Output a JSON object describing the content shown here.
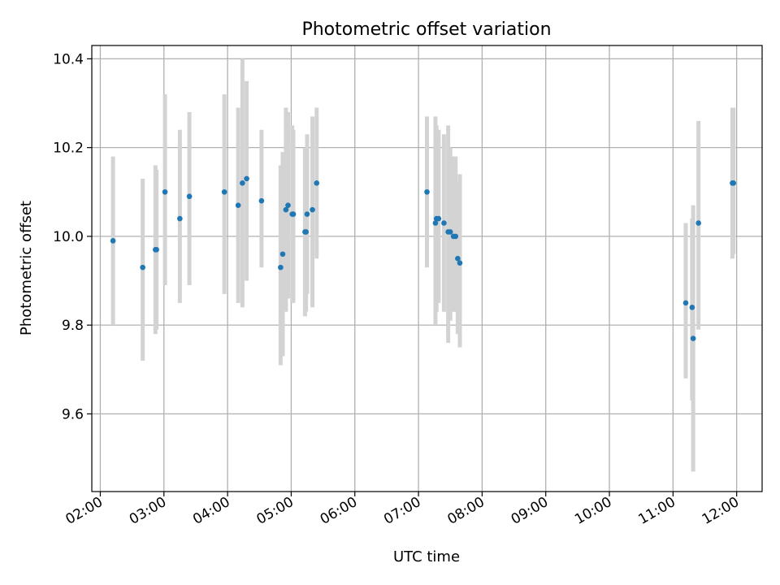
{
  "chart_data": {
    "type": "scatter",
    "title": "Photometric offset variation",
    "xlabel": "UTC time",
    "ylabel": "Photometric offset",
    "x_axis_kind": "time",
    "xlim": [
      "01:52",
      "12:24"
    ],
    "ylim": [
      9.425,
      10.43
    ],
    "x_ticks": [
      "02:00",
      "03:00",
      "04:00",
      "05:00",
      "06:00",
      "07:00",
      "08:00",
      "09:00",
      "10:00",
      "11:00",
      "12:00"
    ],
    "y_ticks": [
      "9.6",
      "9.8",
      "10.0",
      "10.2",
      "10.4"
    ],
    "grid": true,
    "marker_color": "#1f77b4",
    "errorbar_color": "#d3d3d3",
    "series": [
      {
        "points": [
          {
            "x": "02:12",
            "y": 9.99,
            "ylo": 9.8,
            "yhi": 10.18
          },
          {
            "x": "02:40",
            "y": 9.93,
            "ylo": 9.72,
            "yhi": 10.13
          },
          {
            "x": "02:52",
            "y": 9.97,
            "ylo": 9.78,
            "yhi": 10.16
          },
          {
            "x": "02:53",
            "y": 9.97,
            "ylo": 9.79,
            "yhi": 10.15
          },
          {
            "x": "03:01",
            "y": 10.1,
            "ylo": 9.89,
            "yhi": 10.32
          },
          {
            "x": "03:15",
            "y": 10.04,
            "ylo": 9.85,
            "yhi": 10.24
          },
          {
            "x": "03:24",
            "y": 10.09,
            "ylo": 9.89,
            "yhi": 10.28
          },
          {
            "x": "03:57",
            "y": 10.1,
            "ylo": 9.87,
            "yhi": 10.32
          },
          {
            "x": "04:10",
            "y": 10.07,
            "ylo": 9.85,
            "yhi": 10.29
          },
          {
            "x": "04:14",
            "y": 10.12,
            "ylo": 9.84,
            "yhi": 10.4
          },
          {
            "x": "04:18",
            "y": 10.13,
            "ylo": 9.9,
            "yhi": 10.35
          },
          {
            "x": "04:32",
            "y": 10.08,
            "ylo": 9.93,
            "yhi": 10.24
          },
          {
            "x": "04:50",
            "y": 9.93,
            "ylo": 9.71,
            "yhi": 10.16
          },
          {
            "x": "04:52",
            "y": 9.96,
            "ylo": 9.73,
            "yhi": 10.19
          },
          {
            "x": "04:55",
            "y": 10.06,
            "ylo": 9.83,
            "yhi": 10.29
          },
          {
            "x": "04:57",
            "y": 10.07,
            "ylo": 9.86,
            "yhi": 10.28
          },
          {
            "x": "05:01",
            "y": 10.05,
            "ylo": 9.85,
            "yhi": 10.25
          },
          {
            "x": "05:02",
            "y": 10.05,
            "ylo": 9.85,
            "yhi": 10.24
          },
          {
            "x": "05:13",
            "y": 10.01,
            "ylo": 9.82,
            "yhi": 10.2
          },
          {
            "x": "05:14",
            "y": 10.01,
            "ylo": 9.83,
            "yhi": 10.19
          },
          {
            "x": "05:15",
            "y": 10.05,
            "ylo": 9.87,
            "yhi": 10.23
          },
          {
            "x": "05:20",
            "y": 10.06,
            "ylo": 9.84,
            "yhi": 10.27
          },
          {
            "x": "05:24",
            "y": 10.12,
            "ylo": 9.95,
            "yhi": 10.29
          },
          {
            "x": "07:08",
            "y": 10.1,
            "ylo": 9.93,
            "yhi": 10.27
          },
          {
            "x": "07:16",
            "y": 10.03,
            "ylo": 9.8,
            "yhi": 10.27
          },
          {
            "x": "07:17",
            "y": 10.04,
            "ylo": 9.83,
            "yhi": 10.25
          },
          {
            "x": "07:19",
            "y": 10.04,
            "ylo": 9.85,
            "yhi": 10.24
          },
          {
            "x": "07:24",
            "y": 10.03,
            "ylo": 9.83,
            "yhi": 10.23
          },
          {
            "x": "07:28",
            "y": 10.01,
            "ylo": 9.76,
            "yhi": 10.25
          },
          {
            "x": "07:30",
            "y": 10.01,
            "ylo": 9.81,
            "yhi": 10.2
          },
          {
            "x": "07:33",
            "y": 10.0,
            "ylo": 9.83,
            "yhi": 10.18
          },
          {
            "x": "07:35",
            "y": 10.0,
            "ylo": 9.83,
            "yhi": 10.18
          },
          {
            "x": "07:37",
            "y": 9.95,
            "ylo": 9.78,
            "yhi": 10.12
          },
          {
            "x": "07:39",
            "y": 9.94,
            "ylo": 9.75,
            "yhi": 10.14
          },
          {
            "x": "11:12",
            "y": 9.85,
            "ylo": 9.68,
            "yhi": 10.03
          },
          {
            "x": "11:18",
            "y": 9.84,
            "ylo": 9.63,
            "yhi": 10.04
          },
          {
            "x": "11:19",
            "y": 9.77,
            "ylo": 9.47,
            "yhi": 10.07
          },
          {
            "x": "11:24",
            "y": 10.03,
            "ylo": 9.79,
            "yhi": 10.26
          },
          {
            "x": "11:56",
            "y": 10.12,
            "ylo": 9.95,
            "yhi": 10.29
          },
          {
            "x": "11:57",
            "y": 10.12,
            "ylo": 9.96,
            "yhi": 10.29
          }
        ]
      }
    ]
  }
}
